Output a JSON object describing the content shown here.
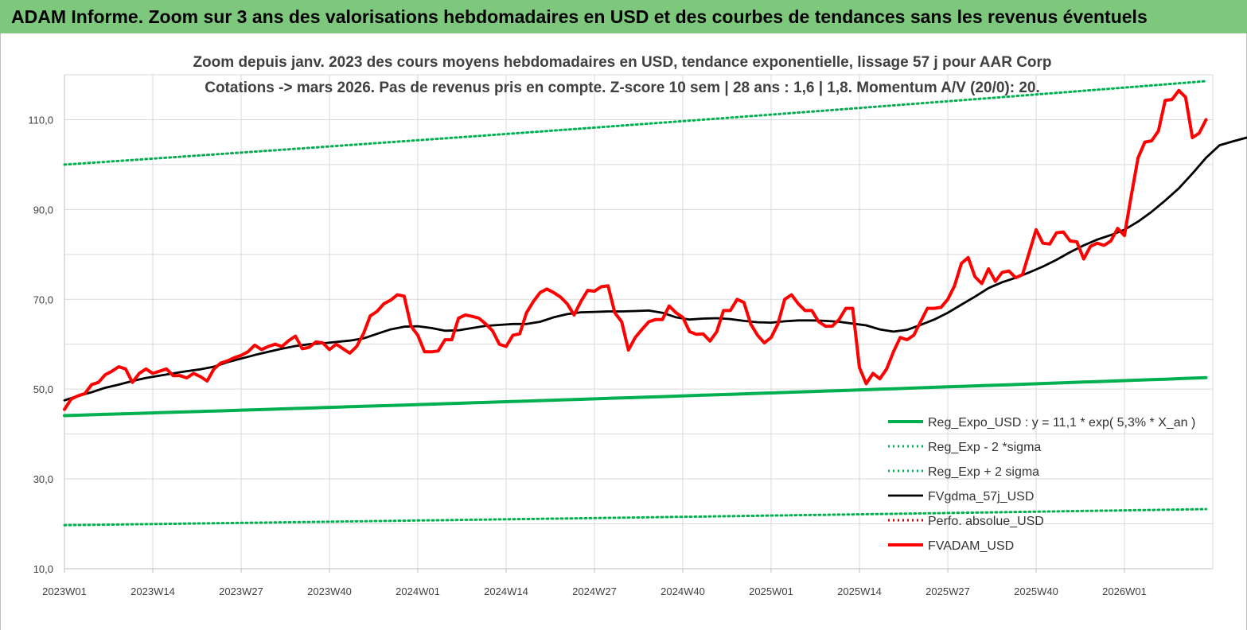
{
  "header": {
    "title": "ADAM Informe. Zoom sur 3 ans des valorisations hebdomadaires en USD et des courbes de tendances sans les revenus éventuels"
  },
  "chart_data": {
    "type": "line",
    "title_lines": [
      "Zoom depuis janv. 2023 des cours moyens hebdomadaires en USD, tendance exponentielle, lissage 57 j pour AAR Corp",
      "Cotations -> mars 2026. Pas de revenus pris en compte. Z-score 10 sem  | 28 ans : 1,6 | 1,8. Momentum A/V (20/0): 20."
    ],
    "x_tick_labels": [
      "2023W01",
      "2023W14",
      "2023W27",
      "2023W40",
      "2024W01",
      "2024W14",
      "2024W27",
      "2024W40",
      "2025W01",
      "2025W14",
      "2025W27",
      "2025W40",
      "2026W01"
    ],
    "x_tick_weeks": [
      0,
      13,
      26,
      39,
      52,
      65,
      78,
      91,
      104,
      117,
      130,
      143,
      156
    ],
    "x_max_week": 169,
    "y_ticks": [
      10,
      30,
      50,
      70,
      90,
      110
    ],
    "y_tick_labels": [
      "10,0",
      "30,0",
      "50,0",
      "70,0",
      "90,0",
      "110,0"
    ],
    "ylim": [
      10,
      120
    ],
    "grid": true,
    "legend_position": "bottom-right",
    "series": [
      {
        "name": "Reg_Expo_USD : y = 11,1 * exp( 5,3% *  X_an )",
        "color": "#00b050",
        "style": "solid-thick",
        "start": 44.1,
        "end": 52.6
      },
      {
        "name": "Reg_Exp - 2 *sigma",
        "color": "#00b050",
        "style": "dotted",
        "start": 19.7,
        "end": 23.3
      },
      {
        "name": "Reg_Exp + 2 sigma",
        "color": "#00b050",
        "style": "dotted",
        "start": 100.0,
        "end": 118.7
      },
      {
        "name": "FVgdma_57j_USD",
        "color": "#000000",
        "style": "solid",
        "points": [
          [
            0,
            47.5
          ],
          [
            2,
            48.5
          ],
          [
            4,
            49.3
          ],
          [
            6,
            50.3
          ],
          [
            8,
            51
          ],
          [
            10,
            51.8
          ],
          [
            12,
            52.5
          ],
          [
            14,
            53
          ],
          [
            16,
            53.5
          ],
          [
            18,
            54
          ],
          [
            20,
            54.4
          ],
          [
            22,
            55
          ],
          [
            24,
            56
          ],
          [
            26,
            56.8
          ],
          [
            28,
            57.6
          ],
          [
            30,
            58.3
          ],
          [
            32,
            59
          ],
          [
            34,
            59.6
          ],
          [
            36,
            60
          ],
          [
            38,
            60.2
          ],
          [
            40,
            60.5
          ],
          [
            42,
            60.8
          ],
          [
            44,
            61.3
          ],
          [
            46,
            62.3
          ],
          [
            48,
            63.3
          ],
          [
            50,
            63.9
          ],
          [
            52,
            64
          ],
          [
            54,
            63.6
          ],
          [
            56,
            63
          ],
          [
            58,
            63.1
          ],
          [
            60,
            63.6
          ],
          [
            62,
            64.1
          ],
          [
            64,
            64.3
          ],
          [
            66,
            64.5
          ],
          [
            68,
            64.5
          ],
          [
            70,
            65
          ],
          [
            72,
            66
          ],
          [
            74,
            66.7
          ],
          [
            76,
            67.1
          ],
          [
            78,
            67.2
          ],
          [
            80,
            67.3
          ],
          [
            82,
            67.3
          ],
          [
            84,
            67.4
          ],
          [
            86,
            67.5
          ],
          [
            88,
            67
          ],
          [
            90,
            66
          ],
          [
            92,
            65.5
          ],
          [
            94,
            65.7
          ],
          [
            96,
            65.8
          ],
          [
            98,
            65.6
          ],
          [
            100,
            65.2
          ],
          [
            102,
            64.9
          ],
          [
            104,
            64.8
          ],
          [
            106,
            65.1
          ],
          [
            108,
            65.3
          ],
          [
            110,
            65.3
          ],
          [
            112,
            65.2
          ],
          [
            114,
            65
          ],
          [
            116,
            64.6
          ],
          [
            118,
            64.2
          ],
          [
            120,
            63.3
          ],
          [
            122,
            62.8
          ],
          [
            124,
            63.2
          ],
          [
            126,
            64.3
          ],
          [
            128,
            65.5
          ],
          [
            130,
            67
          ],
          [
            132,
            68.8
          ],
          [
            134,
            70.6
          ],
          [
            136,
            72.5
          ],
          [
            138,
            73.8
          ],
          [
            140,
            74.8
          ],
          [
            142,
            76
          ],
          [
            144,
            77.3
          ],
          [
            146,
            78.8
          ],
          [
            148,
            80.5
          ],
          [
            150,
            82
          ],
          [
            152,
            83.3
          ],
          [
            154,
            84.3
          ],
          [
            156,
            85.5
          ],
          [
            158,
            87.3
          ],
          [
            160,
            89.5
          ],
          [
            162,
            92
          ],
          [
            164,
            94.7
          ],
          [
            166,
            98
          ],
          [
            168,
            101.5
          ],
          [
            170,
            104.3
          ],
          [
            172,
            105.2
          ],
          [
            174,
            106
          ],
          [
            176,
            106.8
          ]
        ]
      },
      {
        "name": "Perfo. absolue_USD",
        "color": "#c00000",
        "style": "dotted",
        "points": []
      },
      {
        "name": "FVADAM_USD",
        "color": "#ff0000",
        "style": "solid-thick",
        "points": [
          [
            0,
            45.5
          ],
          [
            1,
            47.8
          ],
          [
            2,
            48.5
          ],
          [
            3,
            49
          ],
          [
            4,
            51
          ],
          [
            5,
            51.5
          ],
          [
            6,
            53.2
          ],
          [
            7,
            54
          ],
          [
            8,
            55
          ],
          [
            9,
            54.5
          ],
          [
            10,
            51.5
          ],
          [
            11,
            53.5
          ],
          [
            12,
            54.5
          ],
          [
            13,
            53.5
          ],
          [
            14,
            54
          ],
          [
            15,
            54.5
          ],
          [
            16,
            53
          ],
          [
            17,
            53
          ],
          [
            18,
            52.5
          ],
          [
            19,
            53.5
          ],
          [
            20,
            52.8
          ],
          [
            21,
            51.8
          ],
          [
            22,
            54.5
          ],
          [
            23,
            55.8
          ],
          [
            24,
            56.3
          ],
          [
            25,
            57
          ],
          [
            26,
            57.5
          ],
          [
            27,
            58.3
          ],
          [
            28,
            59.8
          ],
          [
            29,
            58.8
          ],
          [
            30,
            59.5
          ],
          [
            31,
            60
          ],
          [
            32,
            59.5
          ],
          [
            33,
            60.8
          ],
          [
            34,
            61.8
          ],
          [
            35,
            59
          ],
          [
            36,
            59.3
          ],
          [
            37,
            60.5
          ],
          [
            38,
            60.3
          ],
          [
            39,
            58.8
          ],
          [
            40,
            60
          ],
          [
            41,
            59
          ],
          [
            42,
            58
          ],
          [
            43,
            59.5
          ],
          [
            44,
            62.3
          ],
          [
            45,
            66.3
          ],
          [
            46,
            67.3
          ],
          [
            47,
            69
          ],
          [
            48,
            69.8
          ],
          [
            49,
            71
          ],
          [
            50,
            70.7
          ],
          [
            51,
            64
          ],
          [
            52,
            62
          ],
          [
            53,
            58.3
          ],
          [
            54,
            58.3
          ],
          [
            55,
            58.5
          ],
          [
            56,
            61
          ],
          [
            57,
            61
          ],
          [
            58,
            65.8
          ],
          [
            59,
            66.5
          ],
          [
            60,
            66.2
          ],
          [
            61,
            65.8
          ],
          [
            62,
            64.5
          ],
          [
            63,
            63
          ],
          [
            64,
            60
          ],
          [
            65,
            59.5
          ],
          [
            66,
            62
          ],
          [
            67,
            62.3
          ],
          [
            68,
            67
          ],
          [
            69,
            69.5
          ],
          [
            70,
            71.5
          ],
          [
            71,
            72.3
          ],
          [
            72,
            71.5
          ],
          [
            73,
            70.5
          ],
          [
            74,
            69
          ],
          [
            75,
            66.5
          ],
          [
            76,
            69.5
          ],
          [
            77,
            72
          ],
          [
            78,
            71.8
          ],
          [
            79,
            72.8
          ],
          [
            80,
            73
          ],
          [
            81,
            67
          ],
          [
            82,
            65
          ],
          [
            83,
            58.7
          ],
          [
            84,
            61.5
          ],
          [
            85,
            63.3
          ],
          [
            86,
            65
          ],
          [
            87,
            65.5
          ],
          [
            88,
            65.5
          ],
          [
            89,
            68.5
          ],
          [
            90,
            67
          ],
          [
            91,
            66
          ],
          [
            92,
            62.8
          ],
          [
            93,
            62.2
          ],
          [
            94,
            62.3
          ],
          [
            95,
            60.7
          ],
          [
            96,
            62.8
          ],
          [
            97,
            67.5
          ],
          [
            98,
            67.5
          ],
          [
            99,
            70
          ],
          [
            100,
            69.3
          ],
          [
            101,
            64.5
          ],
          [
            102,
            62
          ],
          [
            103,
            60.3
          ],
          [
            104,
            61.5
          ],
          [
            105,
            64.5
          ],
          [
            106,
            70
          ],
          [
            107,
            71
          ],
          [
            108,
            69
          ],
          [
            109,
            67.5
          ],
          [
            110,
            67.5
          ],
          [
            111,
            65
          ],
          [
            112,
            64
          ],
          [
            113,
            64
          ],
          [
            114,
            65.5
          ],
          [
            115,
            68
          ],
          [
            116,
            68
          ],
          [
            117,
            54.8
          ],
          [
            118,
            51.2
          ],
          [
            119,
            53.5
          ],
          [
            120,
            52.3
          ],
          [
            121,
            54.5
          ],
          [
            122,
            58.3
          ],
          [
            123,
            61.5
          ],
          [
            124,
            61
          ],
          [
            125,
            62
          ],
          [
            126,
            65
          ],
          [
            127,
            68
          ],
          [
            128,
            68
          ],
          [
            129,
            68.2
          ],
          [
            130,
            70
          ],
          [
            131,
            73
          ],
          [
            132,
            78
          ],
          [
            133,
            79.3
          ],
          [
            134,
            75
          ],
          [
            135,
            73.5
          ],
          [
            136,
            76.8
          ],
          [
            137,
            74
          ],
          [
            138,
            76
          ],
          [
            139,
            76.3
          ],
          [
            140,
            74.8
          ],
          [
            141,
            75.5
          ],
          [
            142,
            80.5
          ],
          [
            143,
            85.5
          ],
          [
            144,
            82.5
          ],
          [
            145,
            82.3
          ],
          [
            146,
            84.8
          ],
          [
            147,
            85
          ],
          [
            148,
            83
          ],
          [
            149,
            82.8
          ],
          [
            150,
            79
          ],
          [
            151,
            81.8
          ],
          [
            152,
            82.5
          ],
          [
            153,
            82
          ],
          [
            154,
            83
          ],
          [
            155,
            85.8
          ],
          [
            156,
            84.2
          ],
          [
            157,
            93
          ],
          [
            158,
            101.5
          ],
          [
            159,
            105
          ],
          [
            160,
            105.3
          ],
          [
            161,
            107.5
          ],
          [
            162,
            114.3
          ],
          [
            163,
            114.5
          ],
          [
            164,
            116.5
          ],
          [
            165,
            115
          ],
          [
            166,
            106
          ],
          [
            167,
            107
          ],
          [
            168,
            110
          ]
        ]
      }
    ]
  }
}
